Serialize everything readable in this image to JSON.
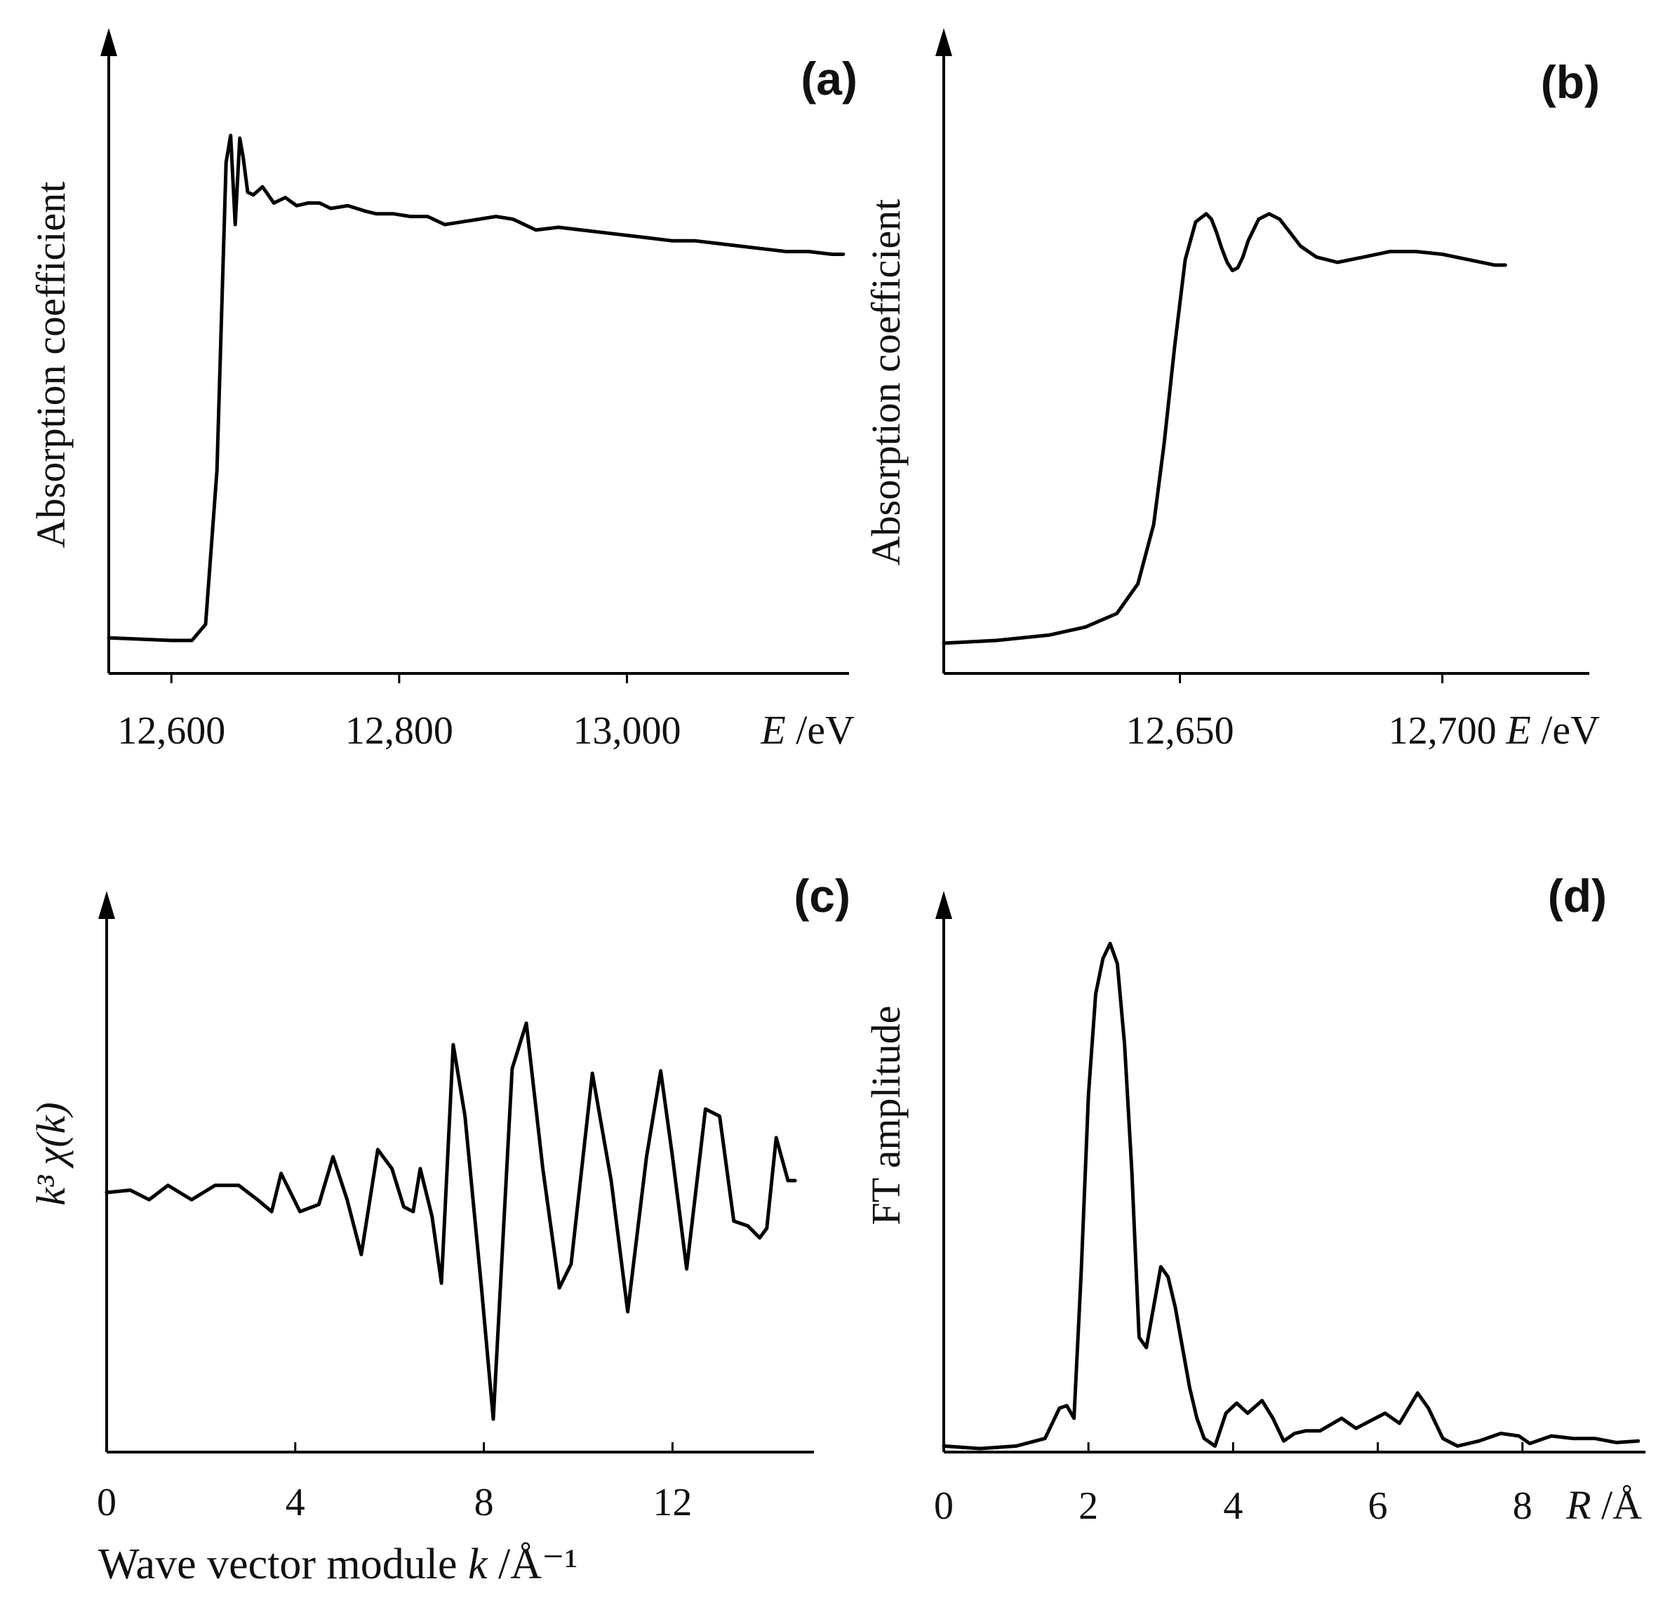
{
  "chart_data": [
    {
      "id": "a",
      "type": "line",
      "panel_label": "(a)",
      "ylabel": "Absorption coefficient",
      "xlabel_var": "E",
      "xlabel_unit": "/eV",
      "xlim": [
        12545,
        13195
      ],
      "ylim": [
        0,
        1
      ],
      "xticks": [
        12600,
        12800,
        13000
      ],
      "xtick_labels": [
        "12,600",
        "12,800",
        "13,000"
      ],
      "series": [
        {
          "name": "absorption",
          "x": [
            12545,
            12600,
            12618,
            12630,
            12640,
            12648,
            12652,
            12656,
            12660,
            12663,
            12667,
            12672,
            12680,
            12690,
            12700,
            12710,
            12720,
            12730,
            12740,
            12755,
            12770,
            12780,
            12795,
            12810,
            12825,
            12840,
            12855,
            12870,
            12885,
            12900,
            12920,
            12940,
            12960,
            12980,
            13000,
            13020,
            13040,
            13060,
            13080,
            13100,
            13120,
            13140,
            13160,
            13180,
            13190
          ],
          "y": [
            0.04,
            0.035,
            0.035,
            0.065,
            0.35,
            0.92,
            0.97,
            0.805,
            0.965,
            0.93,
            0.865,
            0.86,
            0.875,
            0.845,
            0.855,
            0.84,
            0.845,
            0.845,
            0.835,
            0.84,
            0.83,
            0.825,
            0.825,
            0.82,
            0.82,
            0.805,
            0.81,
            0.815,
            0.82,
            0.815,
            0.795,
            0.8,
            0.795,
            0.79,
            0.785,
            0.78,
            0.775,
            0.775,
            0.77,
            0.765,
            0.76,
            0.755,
            0.755,
            0.75,
            0.75
          ]
        }
      ]
    },
    {
      "id": "b",
      "type": "line",
      "panel_label": "(b)",
      "ylabel": "Absorption coefficient",
      "xlabel_var": "E",
      "xlabel_unit": "/eV",
      "xlim": [
        12605,
        12728
      ],
      "ylim": [
        0,
        1
      ],
      "xticks": [
        12650,
        12700
      ],
      "xtick_labels": [
        "12,650",
        "12,700"
      ],
      "series": [
        {
          "name": "absorption",
          "x": [
            12605,
            12615,
            12625,
            12632,
            12638,
            12642,
            12645,
            12647,
            12649,
            12651,
            12653,
            12655,
            12656,
            12657,
            12658,
            12659,
            12660,
            12661,
            12662,
            12663,
            12665,
            12667,
            12669,
            12671,
            12673,
            12676,
            12680,
            12685,
            12690,
            12695,
            12700,
            12705,
            12710,
            12712
          ],
          "y": [
            0.03,
            0.035,
            0.045,
            0.06,
            0.085,
            0.14,
            0.25,
            0.4,
            0.58,
            0.74,
            0.81,
            0.825,
            0.815,
            0.79,
            0.76,
            0.735,
            0.72,
            0.725,
            0.745,
            0.775,
            0.815,
            0.825,
            0.815,
            0.79,
            0.765,
            0.745,
            0.735,
            0.745,
            0.755,
            0.755,
            0.75,
            0.74,
            0.73,
            0.73
          ]
        }
      ]
    },
    {
      "id": "c",
      "type": "line",
      "panel_label": "(c)",
      "ylabel": "k³ χ(k)",
      "xlabel_text": "Wave vector module",
      "xlabel_var": "k",
      "xlabel_unit": "/Å⁻¹",
      "xlim": [
        0,
        15
      ],
      "ylim": [
        -1,
        1
      ],
      "xticks": [
        0,
        4,
        8,
        12
      ],
      "xtick_labels": [
        "0",
        "4",
        "8",
        "12"
      ],
      "series": [
        {
          "name": "k3chi",
          "x": [
            0,
            0.5,
            0.9,
            1.3,
            1.8,
            2.3,
            2.8,
            3.2,
            3.5,
            3.7,
            4.1,
            4.5,
            4.8,
            5.1,
            5.4,
            5.75,
            6.05,
            6.3,
            6.5,
            6.65,
            6.9,
            7.1,
            7.35,
            7.6,
            7.95,
            8.2,
            8.6,
            8.9,
            9.25,
            9.6,
            9.85,
            10.3,
            10.7,
            11.05,
            11.45,
            11.75,
            12.0,
            12.3,
            12.7,
            13.0,
            13.3,
            13.6,
            13.85,
            14.0,
            14.2,
            14.45,
            14.6
          ],
          "y": [
            0.0,
            0.01,
            -0.03,
            0.03,
            -0.03,
            0.03,
            0.03,
            -0.03,
            -0.08,
            0.08,
            -0.08,
            -0.05,
            0.15,
            -0.03,
            -0.26,
            0.18,
            0.1,
            -0.06,
            -0.08,
            0.1,
            -0.1,
            -0.38,
            0.62,
            0.32,
            -0.4,
            -0.95,
            0.52,
            0.71,
            0.1,
            -0.4,
            -0.3,
            0.5,
            0.05,
            -0.5,
            0.15,
            0.51,
            0.15,
            -0.32,
            0.35,
            0.32,
            -0.12,
            -0.14,
            -0.19,
            -0.15,
            0.23,
            0.05,
            0.05
          ]
        }
      ]
    },
    {
      "id": "d",
      "type": "line",
      "panel_label": "(d)",
      "ylabel": "FT amplitude",
      "xlabel_var": "R",
      "xlabel_unit": "/Å",
      "xlim": [
        0,
        9.7
      ],
      "ylim": [
        0,
        1
      ],
      "xticks": [
        0,
        2,
        4,
        6,
        8
      ],
      "xtick_labels": [
        "0",
        "2",
        "4",
        "6",
        "8"
      ],
      "series": [
        {
          "name": "FT",
          "x": [
            0,
            0.5,
            1.0,
            1.4,
            1.6,
            1.7,
            1.8,
            1.9,
            2.0,
            2.1,
            2.2,
            2.3,
            2.4,
            2.5,
            2.6,
            2.7,
            2.8,
            2.9,
            3.0,
            3.1,
            3.2,
            3.3,
            3.4,
            3.5,
            3.6,
            3.75,
            3.9,
            4.05,
            4.2,
            4.4,
            4.55,
            4.7,
            4.85,
            5.0,
            5.2,
            5.5,
            5.7,
            5.9,
            6.1,
            6.3,
            6.55,
            6.7,
            6.9,
            7.1,
            7.4,
            7.7,
            7.95,
            8.1,
            8.4,
            8.7,
            9.0,
            9.3,
            9.6
          ],
          "y": [
            0.005,
            0.0,
            0.005,
            0.02,
            0.08,
            0.085,
            0.06,
            0.35,
            0.7,
            0.9,
            0.97,
            1.0,
            0.96,
            0.8,
            0.55,
            0.22,
            0.2,
            0.28,
            0.36,
            0.34,
            0.28,
            0.2,
            0.12,
            0.06,
            0.02,
            0.005,
            0.07,
            0.09,
            0.07,
            0.095,
            0.06,
            0.015,
            0.03,
            0.035,
            0.035,
            0.06,
            0.04,
            0.055,
            0.07,
            0.05,
            0.11,
            0.08,
            0.02,
            0.005,
            0.015,
            0.03,
            0.025,
            0.01,
            0.025,
            0.02,
            0.02,
            0.012,
            0.015
          ]
        }
      ]
    }
  ]
}
